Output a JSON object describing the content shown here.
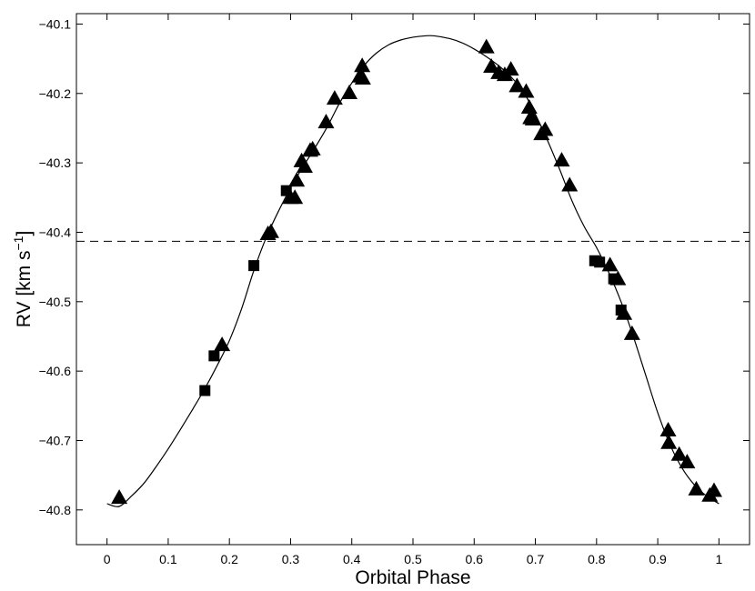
{
  "chart_data": {
    "type": "scatter",
    "title": "",
    "xlabel": "Orbital Phase",
    "ylabel": {
      "main": "RV [km s",
      "superscript": "−1",
      "close": "]"
    },
    "xlim": [
      -0.05,
      1.05
    ],
    "ylim": [
      -40.85,
      -40.085
    ],
    "xticks": [
      0,
      0.1,
      0.2,
      0.3,
      0.4,
      0.5,
      0.6,
      0.7,
      0.8,
      0.9,
      1
    ],
    "xtick_labels": [
      "0",
      "0.1",
      "0.2",
      "0.3",
      "0.4",
      "0.5",
      "0.6",
      "0.7",
      "0.8",
      "0.9",
      "1"
    ],
    "yticks": [
      -40.1,
      -40.2,
      -40.3,
      -40.4,
      -40.5,
      -40.6,
      -40.7,
      -40.8
    ],
    "ytick_labels": [
      "−40.1",
      "−40.2",
      "−40.3",
      "−40.4",
      "−40.5",
      "−40.6",
      "−40.7",
      "−40.8"
    ],
    "grid": false,
    "reference_line": {
      "y": -40.413,
      "style": "dashed"
    },
    "fit_curve": {
      "style": "solid",
      "points": [
        [
          0.0,
          -40.791
        ],
        [
          0.02,
          -40.795
        ],
        [
          0.04,
          -40.78
        ],
        [
          0.06,
          -40.762
        ],
        [
          0.08,
          -40.738
        ],
        [
          0.1,
          -40.712
        ],
        [
          0.12,
          -40.684
        ],
        [
          0.14,
          -40.655
        ],
        [
          0.16,
          -40.625
        ],
        [
          0.18,
          -40.592
        ],
        [
          0.2,
          -40.556
        ],
        [
          0.22,
          -40.51
        ],
        [
          0.24,
          -40.455
        ],
        [
          0.26,
          -40.408
        ],
        [
          0.28,
          -40.37
        ],
        [
          0.3,
          -40.336
        ],
        [
          0.32,
          -40.306
        ],
        [
          0.34,
          -40.278
        ],
        [
          0.36,
          -40.248
        ],
        [
          0.38,
          -40.214
        ],
        [
          0.4,
          -40.185
        ],
        [
          0.42,
          -40.16
        ],
        [
          0.44,
          -40.142
        ],
        [
          0.46,
          -40.13
        ],
        [
          0.48,
          -40.123
        ],
        [
          0.5,
          -40.119
        ],
        [
          0.52,
          -40.117
        ],
        [
          0.535,
          -40.117
        ],
        [
          0.56,
          -40.121
        ],
        [
          0.58,
          -40.127
        ],
        [
          0.6,
          -40.136
        ],
        [
          0.62,
          -40.147
        ],
        [
          0.64,
          -40.16
        ],
        [
          0.66,
          -40.176
        ],
        [
          0.68,
          -40.197
        ],
        [
          0.7,
          -40.23
        ],
        [
          0.72,
          -40.268
        ],
        [
          0.74,
          -40.31
        ],
        [
          0.76,
          -40.355
        ],
        [
          0.78,
          -40.392
        ],
        [
          0.8,
          -40.422
        ],
        [
          0.82,
          -40.458
        ],
        [
          0.84,
          -40.5
        ],
        [
          0.86,
          -40.55
        ],
        [
          0.88,
          -40.605
        ],
        [
          0.9,
          -40.66
        ],
        [
          0.92,
          -40.706
        ],
        [
          0.94,
          -40.74
        ],
        [
          0.96,
          -40.764
        ],
        [
          0.98,
          -40.78
        ],
        [
          1.0,
          -40.791
        ]
      ]
    },
    "series": [
      {
        "marker": "triangle",
        "color": "#000000",
        "points": [
          [
            0.02,
            -40.782
          ],
          [
            0.188,
            -40.562
          ],
          [
            0.263,
            -40.402
          ],
          [
            0.268,
            -40.399
          ],
          [
            0.3,
            -40.35
          ],
          [
            0.307,
            -40.35
          ],
          [
            0.31,
            -40.325
          ],
          [
            0.318,
            -40.297
          ],
          [
            0.323,
            -40.305
          ],
          [
            0.332,
            -40.282
          ],
          [
            0.336,
            -40.28
          ],
          [
            0.358,
            -40.241
          ],
          [
            0.372,
            -40.207
          ],
          [
            0.396,
            -40.199
          ],
          [
            0.413,
            -40.175
          ],
          [
            0.417,
            -40.16
          ],
          [
            0.418,
            -40.178
          ],
          [
            0.62,
            -40.133
          ],
          [
            0.628,
            -40.161
          ],
          [
            0.64,
            -40.17
          ],
          [
            0.65,
            -40.173
          ],
          [
            0.66,
            -40.165
          ],
          [
            0.67,
            -40.189
          ],
          [
            0.685,
            -40.197
          ],
          [
            0.69,
            -40.22
          ],
          [
            0.692,
            -40.235
          ],
          [
            0.696,
            -40.237
          ],
          [
            0.71,
            -40.258
          ],
          [
            0.716,
            -40.252
          ],
          [
            0.743,
            -40.296
          ],
          [
            0.756,
            -40.332
          ],
          [
            0.822,
            -40.447
          ],
          [
            0.835,
            -40.467
          ],
          [
            0.845,
            -40.517
          ],
          [
            0.858,
            -40.546
          ],
          [
            0.917,
            -40.685
          ],
          [
            0.918,
            -40.703
          ],
          [
            0.935,
            -40.72
          ],
          [
            0.948,
            -40.731
          ],
          [
            0.963,
            -40.77
          ],
          [
            0.985,
            -40.779
          ],
          [
            0.992,
            -40.772
          ]
        ]
      },
      {
        "marker": "square",
        "color": "#000000",
        "points": [
          [
            0.16,
            -40.628
          ],
          [
            0.175,
            -40.578
          ],
          [
            0.24,
            -40.448
          ],
          [
            0.293,
            -40.34
          ],
          [
            0.797,
            -40.441
          ],
          [
            0.805,
            -40.443
          ],
          [
            0.828,
            -40.467
          ],
          [
            0.84,
            -40.512
          ]
        ]
      }
    ]
  }
}
